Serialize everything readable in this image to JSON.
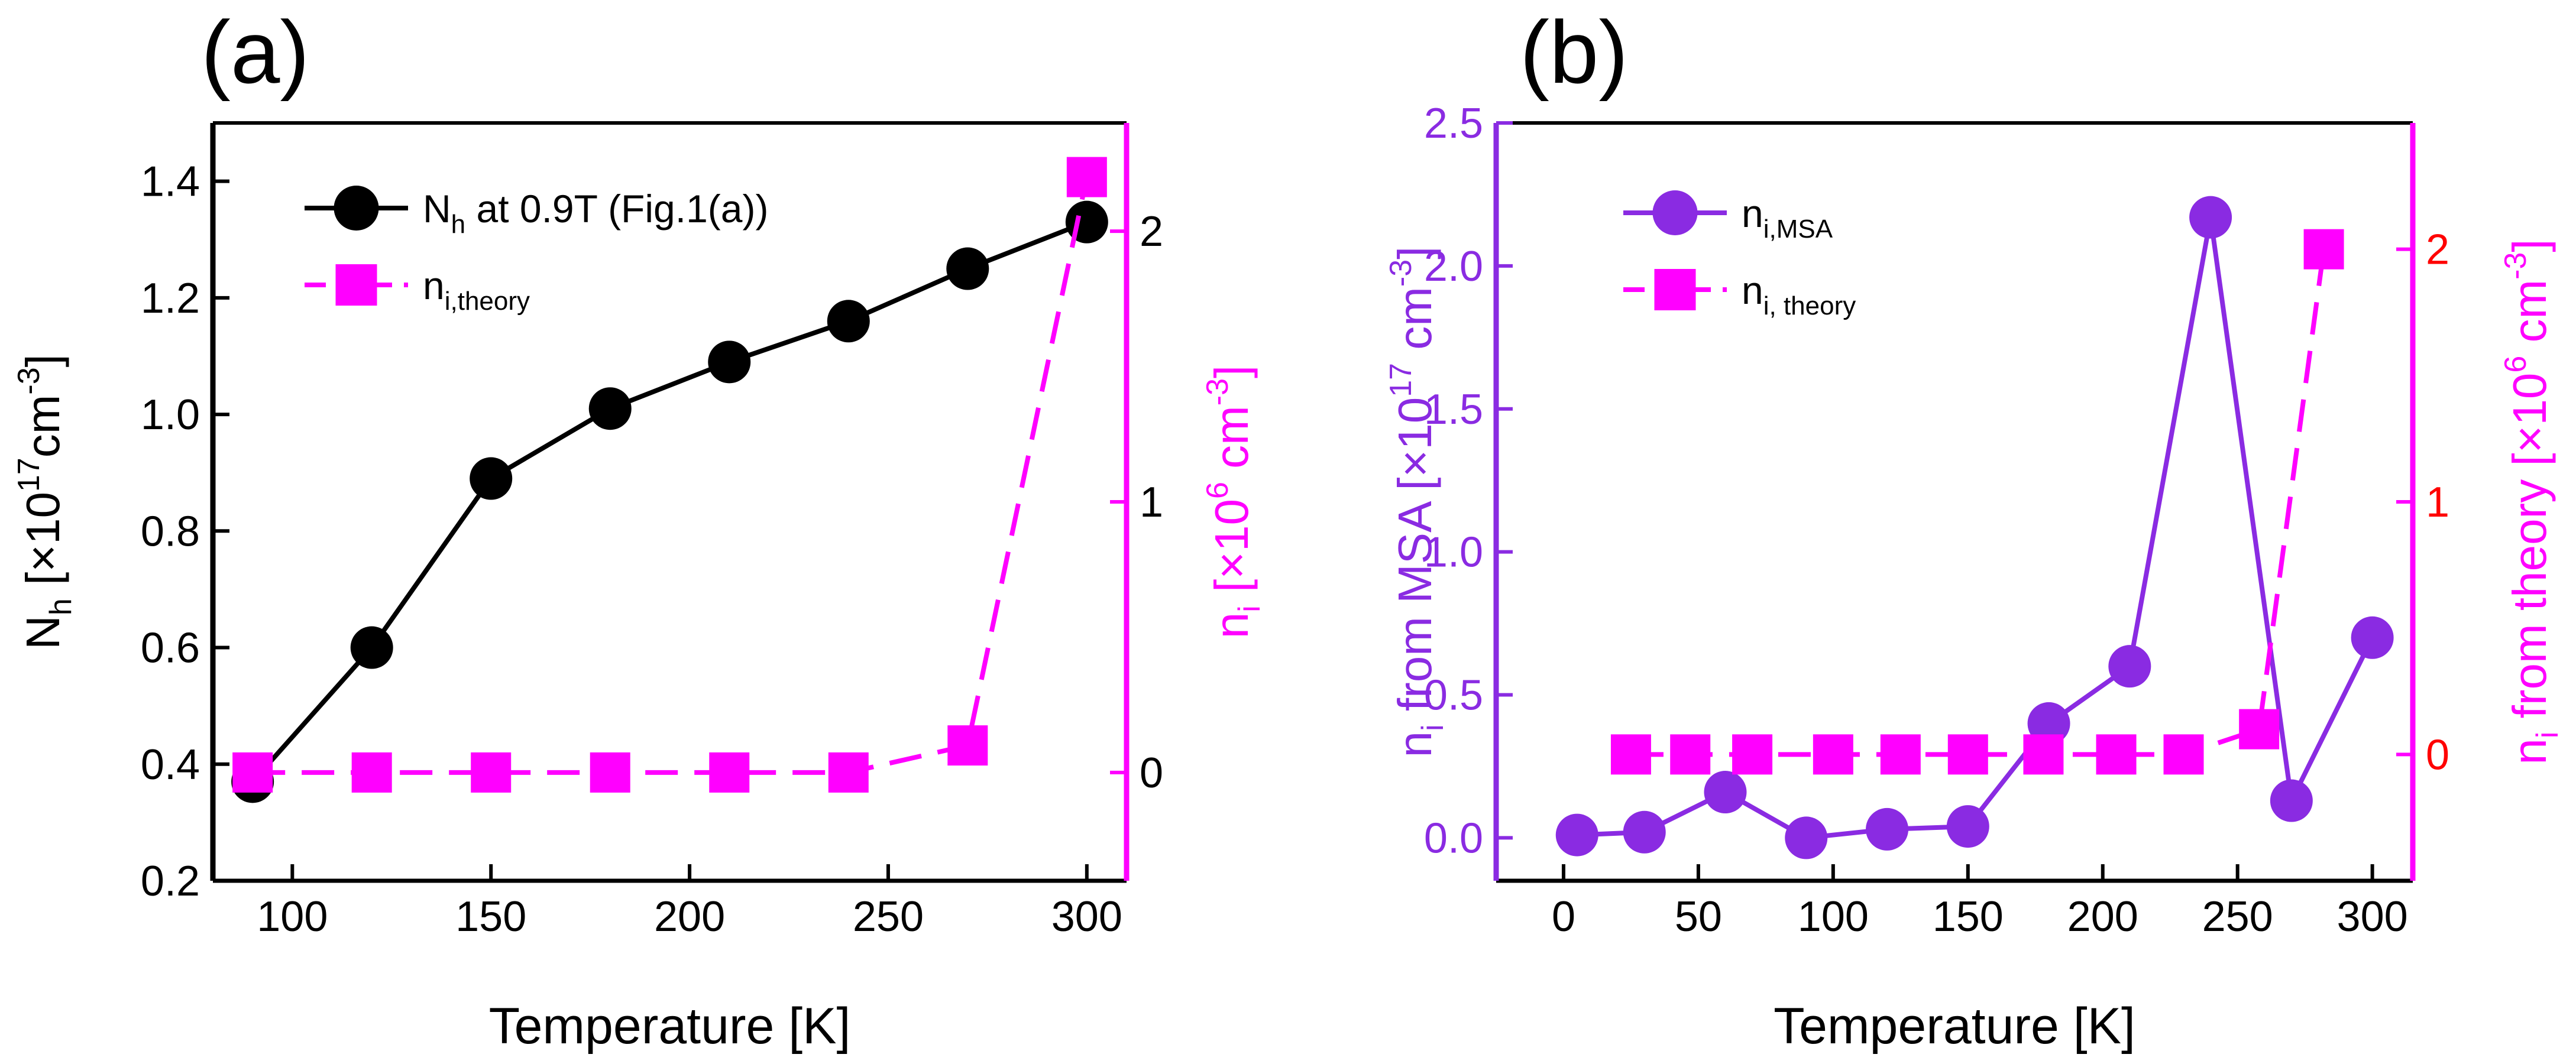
{
  "colors": {
    "black": "#000000",
    "magenta": "#ff00ff",
    "purple": "#8a2be2",
    "red": "#ff0000"
  },
  "chart_data": [
    {
      "panel_label": "(a)",
      "type": "line",
      "xlabel": "Temperature [K]",
      "xlim": [
        80,
        310
      ],
      "xticks": [
        100,
        150,
        200,
        250,
        300
      ],
      "ylabel_left": {
        "base": "N",
        "sub": "h",
        "pre": " [×10",
        "exp": "17",
        "mid": "cm",
        "exp2": "-3",
        "post": "]"
      },
      "ylim_left": [
        0.2,
        1.5
      ],
      "yticks_left": [
        "0.2",
        "0.4",
        "0.6",
        "0.8",
        "1.0",
        "1.2",
        "1.4"
      ],
      "ylabel_right": {
        "base": "n",
        "sub": "i",
        "pre": " [×10",
        "exp": "6",
        "mid": " cm",
        "exp2": "-3",
        "post": "]"
      },
      "ylim_right": [
        -0.4,
        2.4
      ],
      "yticks_right": [
        "0",
        "1",
        "2"
      ],
      "legend_position": "top-left",
      "series": [
        {
          "name": "N_h at 0.9T (Fig.1(a))",
          "legend": {
            "base": "N",
            "sub": "h",
            "tail": " at 0.9T (Fig.1(a))"
          },
          "axis": "left",
          "color": "#000000",
          "marker": "circle",
          "dash": "solid",
          "x": [
            90,
            120,
            150,
            180,
            210,
            240,
            270,
            300
          ],
          "y": [
            0.37,
            0.6,
            0.89,
            1.01,
            1.09,
            1.16,
            1.25,
            1.33
          ]
        },
        {
          "name": "n_i,theory",
          "legend": {
            "base": "n",
            "sub": "i,theory",
            "tail": ""
          },
          "axis": "right",
          "color": "#ff00ff",
          "marker": "square",
          "dash": "dashed",
          "x": [
            90,
            120,
            150,
            180,
            210,
            240,
            270,
            300
          ],
          "y": [
            0,
            0,
            0,
            0,
            0,
            0,
            0.1,
            2.2
          ]
        }
      ]
    },
    {
      "panel_label": "(b)",
      "type": "line",
      "xlabel": "Temperature [K]",
      "xlim": [
        -25,
        315
      ],
      "xticks": [
        0,
        50,
        100,
        150,
        200,
        250,
        300
      ],
      "ylabel_left": {
        "base": "n",
        "sub": "i",
        "pre": " from MSA [×10",
        "exp": "17",
        "mid": " cm",
        "exp2": "-3",
        "post": "]"
      },
      "ylim_left": [
        -0.15,
        2.5
      ],
      "yticks_left": [
        "0.0",
        "0.5",
        "1.0",
        "1.5",
        "2.0",
        "2.5"
      ],
      "ylabel_right": {
        "base": "n",
        "sub": "i",
        "pre": " from theory [×10",
        "exp": "6",
        "mid": " cm",
        "exp2": "-3",
        "post": "]"
      },
      "ylim_right": [
        -0.5,
        2.5
      ],
      "yticks_right": [
        "0",
        "1",
        "2"
      ],
      "legend_position": "top-left",
      "series": [
        {
          "name": "n_i,MSA",
          "legend": {
            "base": "n",
            "sub": "i,MSA",
            "tail": ""
          },
          "axis": "left",
          "color": "#8a2be2",
          "marker": "circle",
          "dash": "solid",
          "x": [
            5,
            30,
            60,
            90,
            120,
            150,
            180,
            210,
            240,
            270,
            300
          ],
          "y": [
            0.01,
            0.02,
            0.16,
            0.0,
            0.03,
            0.04,
            0.4,
            0.6,
            2.17,
            0.13,
            0.7
          ]
        },
        {
          "name": "n_i, theory",
          "legend": {
            "base": "n",
            "sub": "i, theory",
            "tail": ""
          },
          "axis": "right",
          "color": "#ff00ff",
          "marker": "square",
          "dash": "dashed",
          "x": [
            25,
            47,
            70,
            100,
            125,
            150,
            178,
            205,
            230,
            258,
            282
          ],
          "y": [
            0,
            0,
            0,
            0,
            0,
            0,
            0,
            0,
            0,
            0.1,
            2.0
          ]
        }
      ]
    }
  ]
}
